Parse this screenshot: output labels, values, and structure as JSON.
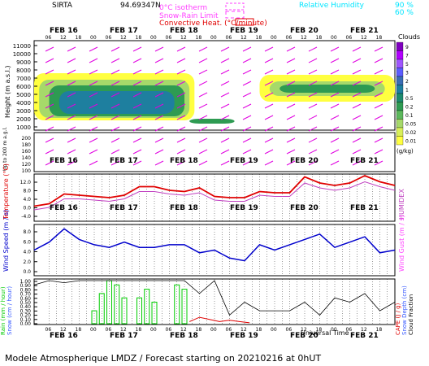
{
  "header": {
    "site": "SIRTA",
    "coords": "94.69347N",
    "legend_isotherm": "0°C isotherm",
    "legend_snowrain": "Snow-Rain Limit",
    "legend_convective": "Convective Heat. (°C/minute)",
    "legend_rh": "Relative Humidity",
    "rh_90": "90 %",
    "rh_60": "60 %"
  },
  "footer": "Modele Atmospherique LMDZ / Forecast starting on 20210216 at 0hUT",
  "universal_time": "Universal Time",
  "days": [
    "FEB 16",
    "FEB 17",
    "FEB 18",
    "FEB 19",
    "FEB 20",
    "FEB 21"
  ],
  "hour_ticks": [
    "06",
    "12",
    "18",
    "00",
    "06",
    "12",
    "18",
    "00",
    "06",
    "12",
    "18",
    "00",
    "06",
    "12",
    "18",
    "00",
    "06",
    "12",
    "18",
    "00",
    "06",
    "12",
    "18"
  ],
  "colors": {
    "temp": "#e00000",
    "humidex": "#c040c0",
    "wind": "#0000cc",
    "rain": "#00cc00",
    "cape": "#e00000",
    "cloud_cover": "#000000",
    "rh": "#00e5ff",
    "wind_barbs": "#e000e0"
  },
  "clouds_panel": {
    "ylabel": "Height (m a.s.l.)",
    "ylabel_low": "Up to 200 m a.g.l.",
    "yticks": [
      "11000",
      "10000",
      "9000",
      "8000",
      "7000",
      "6000",
      "5000",
      "4000",
      "3000",
      "2000",
      "1000"
    ],
    "yticks_low": [
      "200",
      "180",
      "160",
      "140",
      "120",
      "100"
    ],
    "colorbar_title": "Clouds",
    "colorbar_labels": [
      "9",
      "7",
      "5",
      "3",
      "2",
      "1",
      "0.5",
      "0.2",
      "0.1",
      "0.05",
      "0.02",
      "0.01"
    ],
    "colorbar_colors": [
      "#7f00bf",
      "#b200ff",
      "#9f55ff",
      "#5c5cff",
      "#3a6db5",
      "#1e7f9f",
      "#1d8a6e",
      "#2e9b52",
      "#5cb85c",
      "#a6d96a",
      "#d9ef5a",
      "#ffff40"
    ],
    "units": "(g/kg)"
  },
  "temperature_panel": {
    "ylabel": "Temperature (°C)",
    "ylabel_right": "HUMIDEX",
    "yticks": [
      "12.0",
      "8.0",
      "4.0",
      "0.0",
      "-4.0"
    ],
    "ylim": [
      -4,
      14
    ]
  },
  "wind_panel": {
    "ylabel": "Wind Speed (m / s)",
    "ylabel_right": "Wind Gust (m / s)",
    "yticks": [
      "8.0",
      "6.0",
      "4.0",
      "2.0",
      "0.0"
    ],
    "ylim": [
      0,
      9
    ]
  },
  "precip_panel": {
    "ylabel_left1": "Rain (mm / hour)",
    "ylabel_left2": "Snow (cm / hour)",
    "ylabel_right1": "CAPE (J / g)",
    "ylabel_right2": "Snow Depth (cm)",
    "ylabel_right3": "Cloud Fraction",
    "yticks": [
      "1.00",
      "0.90",
      "0.80",
      "0.70",
      "0.60",
      "0.50",
      "0.40",
      "0.30",
      "0.20",
      "0.10",
      "0.00"
    ],
    "ylim": [
      0,
      1
    ]
  },
  "chart_data": [
    {
      "type": "line",
      "title": "",
      "xlabel": "Universal Time",
      "ylabel": "Temperature (°C)",
      "ylim": [
        -4,
        14
      ],
      "series": [
        {
          "name": "Temperature",
          "x": [
            0,
            6,
            12,
            18,
            24,
            30,
            36,
            42,
            48,
            54,
            60,
            66,
            72,
            78,
            84,
            90,
            96,
            102,
            108,
            114,
            120,
            126,
            132,
            138,
            144
          ],
          "values": [
            1.5,
            2.5,
            6.5,
            6.0,
            5.5,
            5.0,
            6.0,
            9.5,
            9.5,
            8.0,
            7.5,
            9.0,
            5.5,
            5.0,
            5.0,
            7.5,
            7.0,
            7.0,
            13.5,
            11.0,
            10.0,
            11.0,
            14.0,
            11.5,
            10.0
          ]
        },
        {
          "name": "HUMIDEX",
          "x": [
            0,
            6,
            12,
            18,
            24,
            30,
            36,
            42,
            48,
            54,
            60,
            66,
            72,
            78,
            84,
            90,
            96,
            102,
            108,
            114,
            120,
            126,
            132,
            138,
            144
          ],
          "values": [
            0.0,
            1.0,
            4.5,
            4.5,
            4.0,
            3.5,
            4.5,
            7.5,
            7.5,
            6.5,
            6.0,
            7.0,
            4.0,
            3.5,
            3.5,
            6.0,
            5.5,
            5.5,
            11.0,
            9.0,
            8.0,
            9.0,
            11.5,
            9.5,
            8.0
          ]
        }
      ]
    },
    {
      "type": "line",
      "title": "",
      "xlabel": "Universal Time",
      "ylabel": "Wind Speed (m / s)",
      "ylim": [
        0,
        9
      ],
      "series": [
        {
          "name": "Wind Speed",
          "x": [
            0,
            6,
            12,
            18,
            24,
            30,
            36,
            42,
            48,
            54,
            60,
            66,
            72,
            78,
            84,
            90,
            96,
            102,
            108,
            114,
            120,
            126,
            132,
            138,
            144
          ],
          "values": [
            4.5,
            6.0,
            8.5,
            6.5,
            5.5,
            5.0,
            6.0,
            5.0,
            5.0,
            5.5,
            5.5,
            4.0,
            4.5,
            3.0,
            2.5,
            5.5,
            4.5,
            5.5,
            6.5,
            7.5,
            5.0,
            6.0,
            7.0,
            4.0,
            4.5
          ]
        }
      ]
    },
    {
      "type": "bar",
      "title": "",
      "xlabel": "Universal Time",
      "ylabel": "Rain (mm / hour)",
      "ylim": [
        0,
        1
      ],
      "series": [
        {
          "name": "Rain",
          "x": [
            24,
            27,
            30,
            33,
            36,
            42,
            45,
            48,
            57,
            60
          ],
          "values": [
            0.3,
            0.7,
            1.0,
            0.9,
            0.6,
            0.6,
            0.8,
            0.5,
            0.9,
            0.8
          ]
        },
        {
          "name": "Cloud Fraction",
          "x": [
            0,
            6,
            12,
            18,
            24,
            30,
            36,
            42,
            48,
            54,
            60,
            66,
            72,
            78,
            84,
            90,
            96,
            102,
            108,
            114,
            120,
            126,
            132,
            138,
            144
          ],
          "values": [
            0.9,
            1.0,
            0.95,
            1.0,
            1.0,
            1.0,
            1.0,
            1.0,
            1.0,
            1.0,
            1.0,
            0.7,
            1.0,
            0.2,
            0.5,
            0.3,
            0.3,
            0.3,
            0.5,
            0.2,
            0.6,
            0.5,
            0.7,
            0.3,
            0.5
          ]
        },
        {
          "name": "CAPE",
          "x": [
            62,
            66,
            70,
            74,
            78,
            82,
            86
          ],
          "values": [
            0.05,
            0.15,
            0.1,
            0.05,
            0.08,
            0.05,
            0.02
          ]
        }
      ]
    }
  ]
}
